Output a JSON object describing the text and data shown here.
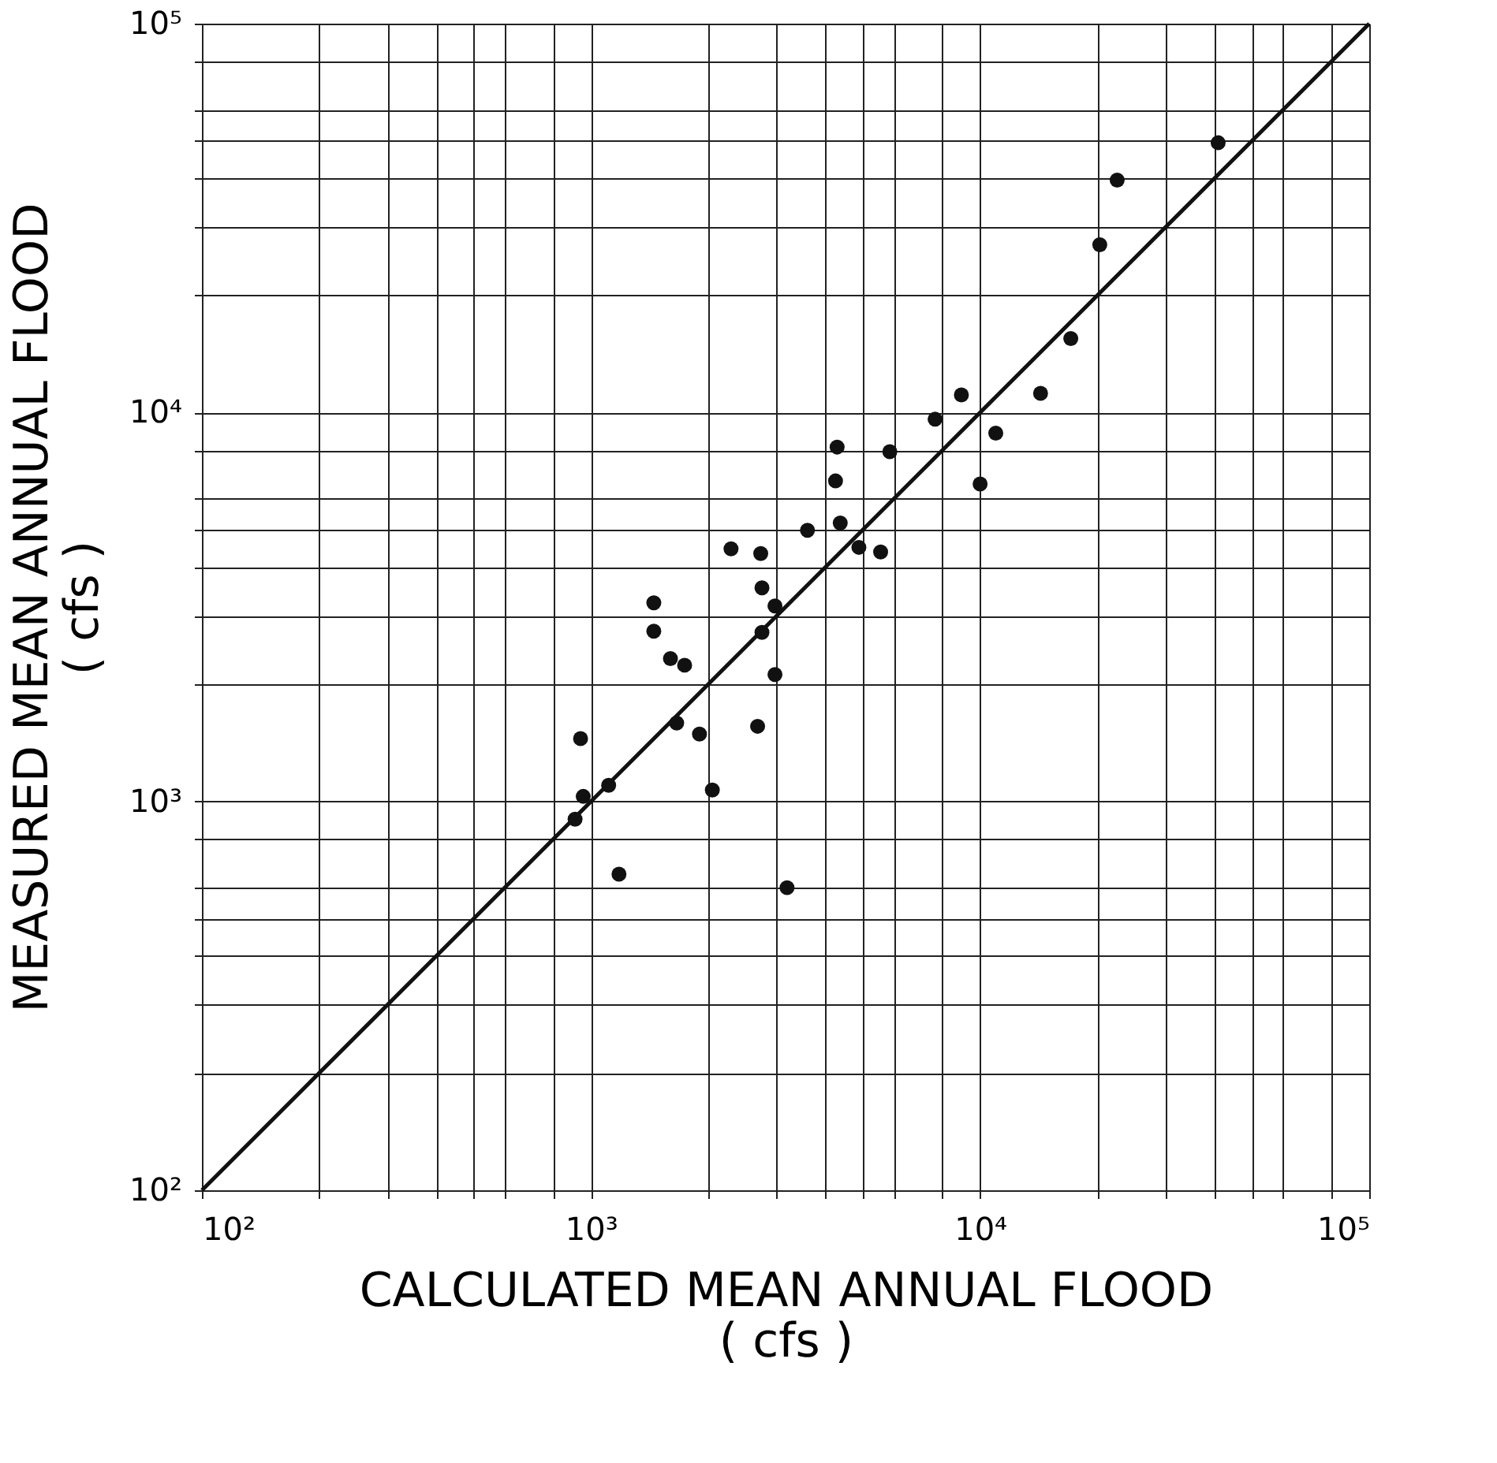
{
  "chart_data": {
    "type": "scatter",
    "xlabel": "CALCULATED MEAN ANNUAL FLOOD\n( cfs )",
    "ylabel": "MEASURED MEAN ANNUAL FLOOD\n( cfs )",
    "log": "xy",
    "grid": true,
    "xlim": [
      100,
      100000
    ],
    "ylim": [
      100,
      100000
    ],
    "xticks": [
      {
        "value": 100,
        "label": "10²"
      },
      {
        "value": 200,
        "label": null
      },
      {
        "value": 300,
        "label": null
      },
      {
        "value": 400,
        "label": null
      },
      {
        "value": 500,
        "label": null
      },
      {
        "value": 600,
        "label": null
      },
      {
        "value": 800,
        "label": null
      },
      {
        "value": 1000,
        "label": "10³"
      },
      {
        "value": 2000,
        "label": null
      },
      {
        "value": 3000,
        "label": null
      },
      {
        "value": 4000,
        "label": null
      },
      {
        "value": 5000,
        "label": null
      },
      {
        "value": 6000,
        "label": null
      },
      {
        "value": 8000,
        "label": null
      },
      {
        "value": 10000,
        "label": "10⁴"
      },
      {
        "value": 20000,
        "label": null
      },
      {
        "value": 30000,
        "label": null
      },
      {
        "value": 40000,
        "label": null
      },
      {
        "value": 50000,
        "label": null
      },
      {
        "value": 60000,
        "label": null
      },
      {
        "value": 80000,
        "label": null
      },
      {
        "value": 100000,
        "label": "10⁵"
      }
    ],
    "yticks": [
      {
        "value": 100,
        "label": "10²"
      },
      {
        "value": 200,
        "label": null
      },
      {
        "value": 300,
        "label": null
      },
      {
        "value": 400,
        "label": null
      },
      {
        "value": 500,
        "label": null
      },
      {
        "value": 600,
        "label": null
      },
      {
        "value": 800,
        "label": null
      },
      {
        "value": 1000,
        "label": "10³"
      },
      {
        "value": 2000,
        "label": null
      },
      {
        "value": 3000,
        "label": null
      },
      {
        "value": 4000,
        "label": null
      },
      {
        "value": 5000,
        "label": null
      },
      {
        "value": 6000,
        "label": null
      },
      {
        "value": 8000,
        "label": null
      },
      {
        "value": 10000,
        "label": "10⁴"
      },
      {
        "value": 20000,
        "label": null
      },
      {
        "value": 30000,
        "label": null
      },
      {
        "value": 40000,
        "label": null
      },
      {
        "value": 50000,
        "label": null
      },
      {
        "value": 60000,
        "label": null
      },
      {
        "value": 80000,
        "label": null
      },
      {
        "value": 100000,
        "label": "10⁵"
      }
    ],
    "series": [
      {
        "color": "#111111",
        "marker": "circle",
        "x": [
          910,
          940,
          955,
          1110,
          1180,
          1450,
          1450,
          1600,
          1740,
          1660,
          1900,
          2050,
          2290,
          2730,
          2750,
          2750,
          2680,
          2970,
          2970,
          3190,
          3600,
          4290,
          4250,
          4370,
          4880,
          5550,
          5860,
          7660,
          8950,
          10000,
          10970,
          14300,
          17100,
          20300,
          22500,
          40900
        ],
        "values": [
          900,
          1450,
          1030,
          1100,
          650,
          3240,
          2740,
          2330,
          2240,
          1590,
          1490,
          1070,
          4460,
          4340,
          3540,
          2720,
          1560,
          3180,
          2120,
          600,
          4980,
          8150,
          6670,
          5200,
          4500,
          4380,
          7930,
          9610,
          11100,
          6550,
          8850,
          11200,
          15500,
          27000,
          39600,
          49400
        ]
      },
      {
        "type": "line",
        "color": "#111111",
        "line_style": "solid",
        "marker": "none",
        "x": [
          100,
          100000
        ],
        "values": [
          100,
          100000
        ]
      }
    ]
  }
}
